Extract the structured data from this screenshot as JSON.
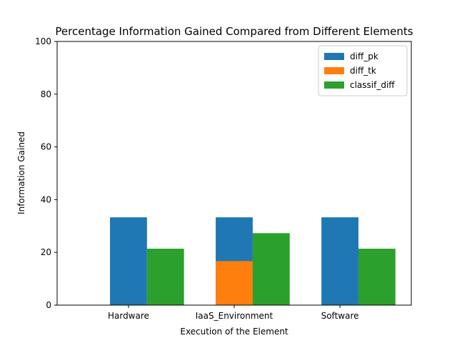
{
  "chart_data": {
    "type": "bar",
    "title": "Percentage Information Gained Compared from Different Elements",
    "xlabel": "Execution of the Element",
    "ylabel": "Information Gained",
    "categories": [
      "Hardware",
      "IaaS_Environment",
      "Software"
    ],
    "ylim": [
      0,
      100
    ],
    "yticks": [
      0,
      20,
      40,
      60,
      80,
      100
    ],
    "grid": false,
    "legend_position": "top-right",
    "series": [
      {
        "name": "diff_pk",
        "color": "#1f77b4",
        "values": [
          33.3,
          33.3,
          33.3
        ]
      },
      {
        "name": "diff_tk",
        "color": "#ff7f0e",
        "values": [
          0,
          16.7,
          0
        ]
      },
      {
        "name": "classif_diff",
        "color": "#2ca02c",
        "values": [
          21.4,
          27.3,
          21.4
        ]
      }
    ]
  }
}
